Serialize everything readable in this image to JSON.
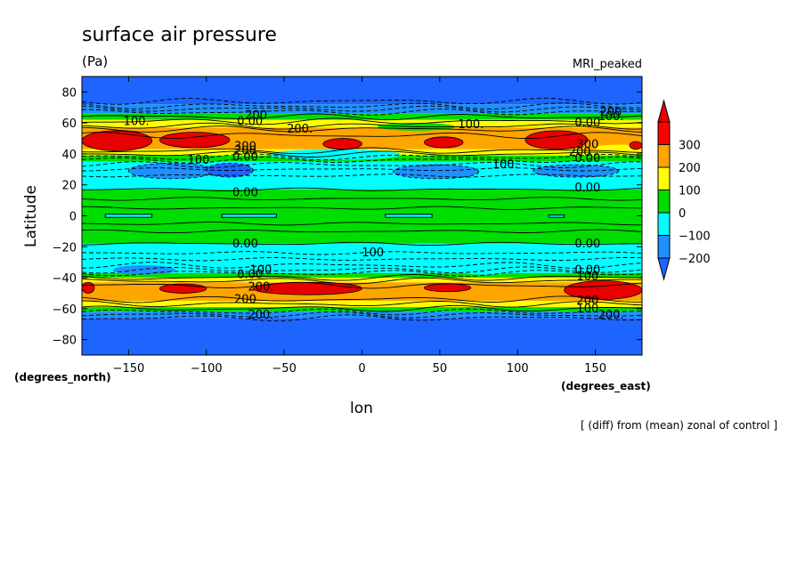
{
  "chart_data": {
    "type": "heatmap",
    "title": "surface air pressure",
    "units": "(Pa)",
    "model_label": "MRI_peaked",
    "xlabel": "lon",
    "ylabel": "Latitude",
    "x_units": "(degrees_east)",
    "y_units": "(degrees_north)",
    "footnote": "[ (diff) from (mean) zonal of control ]",
    "xlim": [
      -180,
      180
    ],
    "ylim": [
      -90,
      90
    ],
    "x_ticks": [
      -150,
      -100,
      -50,
      0,
      50,
      100,
      150
    ],
    "y_ticks": [
      80,
      60,
      40,
      20,
      0,
      -20,
      -40,
      -60,
      -80
    ],
    "colorbar": {
      "labels": [
        "300",
        "200",
        "100",
        "0",
        "−100",
        "−200"
      ],
      "levels": [
        -200,
        -100,
        0,
        100,
        200,
        300
      ],
      "colors": [
        "#1e90ff",
        "#00ffff",
        "#00dd00",
        "#ffff00",
        "#ffa500",
        "#ff0000"
      ],
      "under_color": "#1e64ff",
      "over_color": "#e80000"
    },
    "zonal_bands": [
      {
        "lat": [
          72,
          90
        ],
        "value": -300
      },
      {
        "lat": [
          66,
          72
        ],
        "value": -150
      },
      {
        "lat": [
          62,
          66
        ],
        "value": 50
      },
      {
        "lat": [
          57,
          62
        ],
        "value": 150
      },
      {
        "lat": [
          43,
          57
        ],
        "value": 250
      },
      {
        "lat": [
          39,
          43
        ],
        "value": 150
      },
      {
        "lat": [
          35,
          39
        ],
        "value": 50
      },
      {
        "lat": [
          17,
          35
        ],
        "value": -50
      },
      {
        "lat": [
          -18,
          17
        ],
        "value": 50
      },
      {
        "lat": [
          -37,
          -18
        ],
        "value": -50
      },
      {
        "lat": [
          -40,
          -37
        ],
        "value": 50
      },
      {
        "lat": [
          -43,
          -40
        ],
        "value": 150
      },
      {
        "lat": [
          -55,
          -43
        ],
        "value": 250
      },
      {
        "lat": [
          -59,
          -55
        ],
        "value": 150
      },
      {
        "lat": [
          -62,
          -59
        ],
        "value": 50
      },
      {
        "lat": [
          -66,
          -62
        ],
        "value": -150
      },
      {
        "lat": [
          -90,
          -66
        ],
        "value": -300
      }
    ],
    "cells": [
      {
        "lon": [
          -60,
          25
        ],
        "lat": [
          36,
          43
        ],
        "value": -50
      },
      {
        "lon": [
          10,
          60
        ],
        "lat": [
          55,
          60
        ],
        "value": 50
      },
      {
        "lon": [
          150,
          180
        ],
        "lat": [
          42,
          46
        ],
        "value": 150
      },
      {
        "lon": [
          -160,
          -120
        ],
        "lat": [
          -38,
          -32
        ],
        "value": -150
      },
      {
        "lon": [
          60,
          100
        ],
        "lat": [
          -38,
          -33
        ],
        "value": -50
      }
    ],
    "maxima": [
      {
        "lon": [
          -180,
          -135
        ],
        "lat": [
          42,
          55
        ],
        "value": 350
      },
      {
        "lon": [
          -130,
          -85
        ],
        "lat": [
          44,
          54
        ],
        "value": 350
      },
      {
        "lon": [
          -25,
          0
        ],
        "lat": [
          43,
          50
        ],
        "value": 350
      },
      {
        "lon": [
          40,
          65
        ],
        "lat": [
          44,
          51
        ],
        "value": 350
      },
      {
        "lon": [
          105,
          145
        ],
        "lat": [
          43,
          55
        ],
        "value": 350
      },
      {
        "lon": [
          172,
          180
        ],
        "lat": [
          43,
          48
        ],
        "value": 350
      },
      {
        "lon": [
          -180,
          -172
        ],
        "lat": [
          -50,
          -43
        ],
        "value": 350
      },
      {
        "lon": [
          -130,
          -100
        ],
        "lat": [
          -50,
          -44
        ],
        "value": 350
      },
      {
        "lon": [
          -70,
          0
        ],
        "lat": [
          -51,
          -43
        ],
        "value": 350
      },
      {
        "lon": [
          40,
          70
        ],
        "lat": [
          -49,
          -44
        ],
        "value": 350
      },
      {
        "lon": [
          130,
          180
        ],
        "lat": [
          -54,
          -42
        ],
        "value": 350
      }
    ],
    "minima": [
      {
        "lon": [
          -150,
          -95
        ],
        "lat": [
          24,
          34
        ],
        "value": -150
      },
      {
        "lon": [
          -100,
          -70
        ],
        "lat": [
          25,
          34
        ],
        "value": -250
      },
      {
        "lon": [
          20,
          75
        ],
        "lat": [
          24,
          33
        ],
        "value": -150
      },
      {
        "lon": [
          110,
          165
        ],
        "lat": [
          25,
          33
        ],
        "value": -150
      },
      {
        "lon": [
          -165,
          -135
        ],
        "lat": [
          -1,
          1
        ],
        "value": -50
      },
      {
        "lon": [
          -90,
          -55
        ],
        "lat": [
          -1,
          1
        ],
        "value": -50
      },
      {
        "lon": [
          15,
          45
        ],
        "lat": [
          -1,
          1
        ],
        "value": -50
      },
      {
        "lon": [
          120,
          130
        ],
        "lat": [
          -1,
          0.5
        ],
        "value": -50
      }
    ],
    "contour_lines": [
      {
        "lat": 74,
        "style": "dashed"
      },
      {
        "lat": 71,
        "style": "dashed"
      },
      {
        "lat": 69,
        "style": "dashed"
      },
      {
        "lat": 67,
        "style": "dashed"
      },
      {
        "lat": 64,
        "style": "solid"
      },
      {
        "lat": 61,
        "style": "solid"
      },
      {
        "lat": 58,
        "style": "solid"
      },
      {
        "lat": 56,
        "style": "solid"
      },
      {
        "lat": 52,
        "style": "solid"
      },
      {
        "lat": 42,
        "style": "solid"
      },
      {
        "lat": 40,
        "style": "solid"
      },
      {
        "lat": 38,
        "style": "dashed"
      },
      {
        "lat": 36,
        "style": "dashed"
      },
      {
        "lat": 33,
        "style": "dashed"
      },
      {
        "lat": 30,
        "style": "dashed"
      },
      {
        "lat": 26,
        "style": "dashed"
      },
      {
        "lat": 17,
        "style": "solid"
      },
      {
        "lat": 11,
        "style": "solid"
      },
      {
        "lat": 5,
        "style": "solid"
      },
      {
        "lat": -5,
        "style": "solid"
      },
      {
        "lat": -10,
        "style": "solid"
      },
      {
        "lat": -18,
        "style": "solid"
      },
      {
        "lat": -24,
        "style": "dashed"
      },
      {
        "lat": -28,
        "style": "dashed"
      },
      {
        "lat": -32,
        "style": "dashed"
      },
      {
        "lat": -35,
        "style": "dashed"
      },
      {
        "lat": -37,
        "style": "dashed"
      },
      {
        "lat": -40,
        "style": "solid"
      },
      {
        "lat": -42,
        "style": "solid"
      },
      {
        "lat": -45,
        "style": "solid"
      },
      {
        "lat": -54,
        "style": "solid"
      },
      {
        "lat": -57,
        "style": "solid"
      },
      {
        "lat": -60,
        "style": "solid"
      },
      {
        "lat": -62,
        "style": "dashed"
      },
      {
        "lat": -64,
        "style": "dashed"
      },
      {
        "lat": -66,
        "style": "dashed"
      }
    ],
    "contour_labels": [
      {
        "text": "200",
        "lon": -68,
        "lat": 65
      },
      {
        "text": "0.00",
        "lon": -72,
        "lat": 61
      },
      {
        "text": "100.",
        "lon": -145,
        "lat": 61
      },
      {
        "text": "200.",
        "lon": -40,
        "lat": 56
      },
      {
        "text": "100.",
        "lon": 70,
        "lat": 59
      },
      {
        "text": "0.00",
        "lon": 145,
        "lat": 60
      },
      {
        "text": "100.",
        "lon": 160,
        "lat": 64
      },
      {
        "text": "200",
        "lon": 160,
        "lat": 67
      },
      {
        "text": "300",
        "lon": -75,
        "lat": 45
      },
      {
        "text": "200",
        "lon": -75,
        "lat": 42
      },
      {
        "text": "0.00",
        "lon": -75,
        "lat": 38
      },
      {
        "text": "100",
        "lon": -105,
        "lat": 36
      },
      {
        "text": "100.",
        "lon": 92,
        "lat": 33
      },
      {
        "text": "300",
        "lon": 145,
        "lat": 46
      },
      {
        "text": "200",
        "lon": 140,
        "lat": 41
      },
      {
        "text": "0.00",
        "lon": 145,
        "lat": 37
      },
      {
        "text": "0.00",
        "lon": -75,
        "lat": 15
      },
      {
        "text": "0.00",
        "lon": 145,
        "lat": 18
      },
      {
        "text": "0.00",
        "lon": -75,
        "lat": -18
      },
      {
        "text": "0.00",
        "lon": 145,
        "lat": -18
      },
      {
        "text": "100",
        "lon": 7,
        "lat": -24
      },
      {
        "text": "100",
        "lon": -65,
        "lat": -35
      },
      {
        "text": "0.00",
        "lon": -72,
        "lat": -38
      },
      {
        "text": "200.",
        "lon": -65,
        "lat": -46
      },
      {
        "text": "0.00",
        "lon": 145,
        "lat": -35
      },
      {
        "text": "100",
        "lon": 145,
        "lat": -39
      },
      {
        "text": "200",
        "lon": -75,
        "lat": -54
      },
      {
        "text": "200",
        "lon": 145,
        "lat": -55
      },
      {
        "text": "100",
        "lon": 145,
        "lat": -60
      },
      {
        "text": "200.",
        "lon": -65,
        "lat": -64
      },
      {
        "text": "200.",
        "lon": 160,
        "lat": -64
      }
    ]
  }
}
